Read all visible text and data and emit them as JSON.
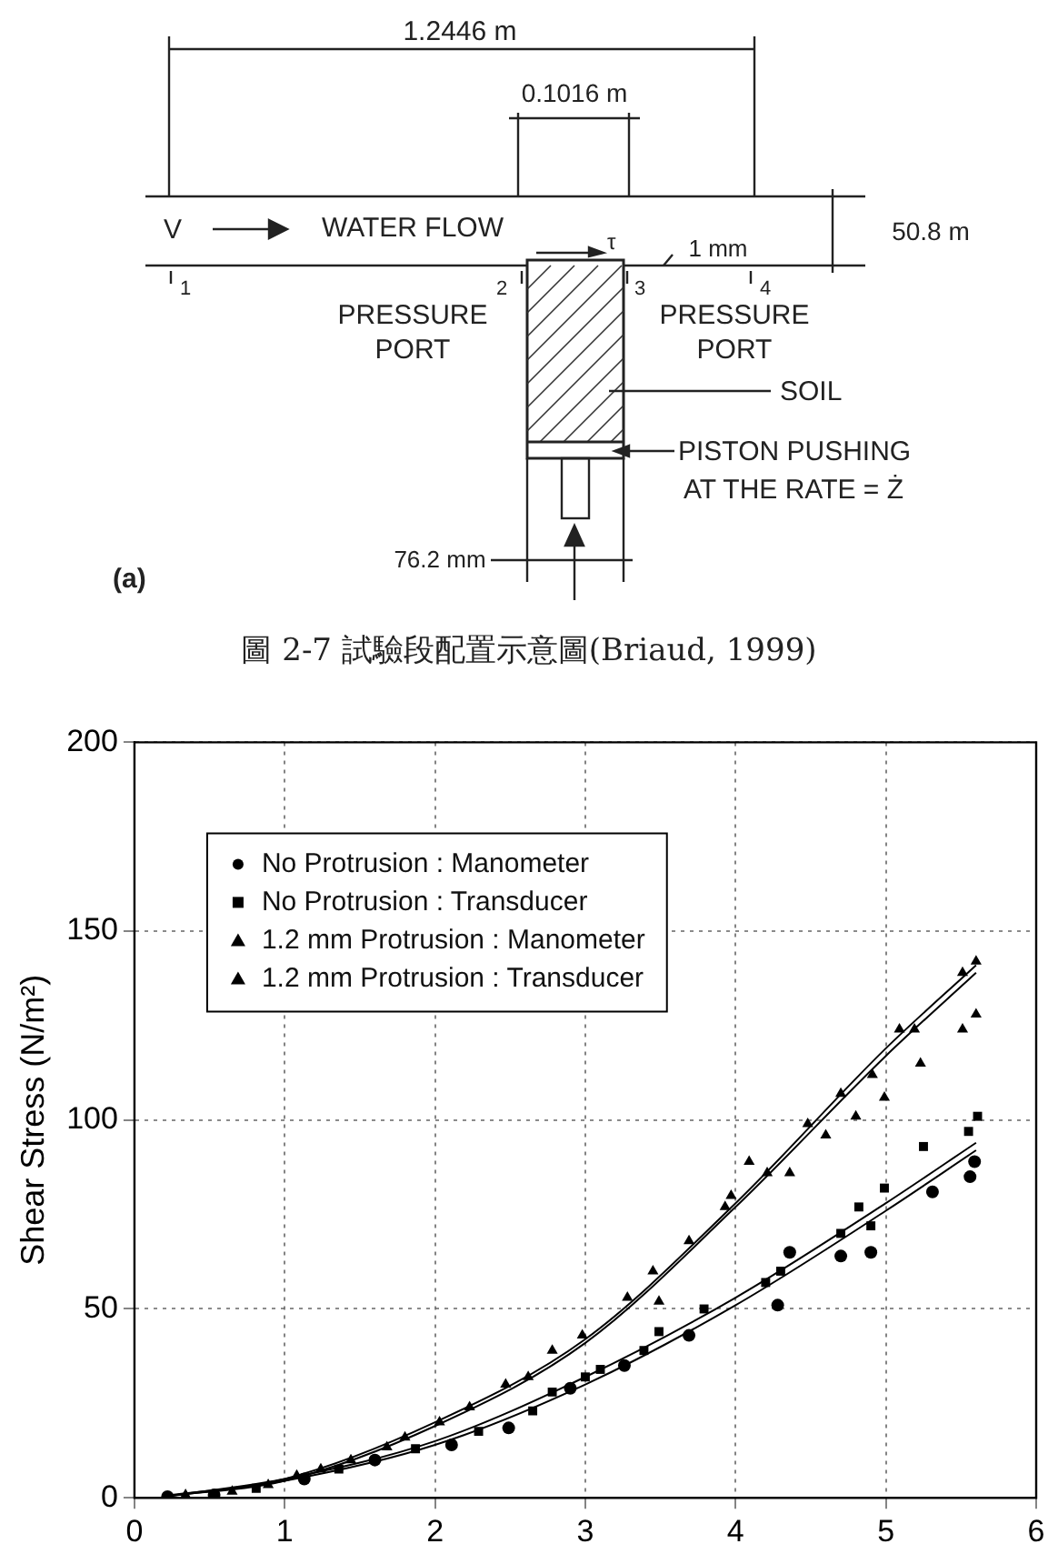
{
  "chart_data": {
    "type": "scatter",
    "ylabel": "Shear Stress (N/m²)",
    "xlim": [
      0,
      6
    ],
    "xticks": [
      0,
      1,
      2,
      3,
      4,
      5,
      6
    ],
    "ylim": [
      0,
      200
    ],
    "yticks": [
      0,
      50,
      100,
      150,
      200
    ],
    "grid": true,
    "legend": "top left",
    "annotations": [
      "1.2446 m",
      "0.1016 m",
      "V",
      "WATER FLOW",
      "τ",
      "1 mm",
      "50.8 m",
      "1",
      "2",
      "3",
      "4",
      "PRESSURE",
      "PORT",
      "PRESSURE",
      "PORT",
      "SOIL",
      "PISTON PUSHING",
      "AT THE RATE = Ż",
      "76.2 mm",
      "(a)",
      "圖 2-7 試驗段配置示意圖(Briaud, 1999)"
    ],
    "series": [
      {
        "name": "No Protrusion : Manometer",
        "color": "#000000",
        "marker": "circle",
        "x": [
          0.22,
          0.53,
          1.13,
          1.6,
          2.11,
          2.49,
          2.9,
          3.26,
          3.69,
          4.28,
          4.36,
          4.7,
          4.9,
          5.31,
          5.56,
          5.59
        ],
        "values": [
          0.3,
          0.8,
          5,
          10,
          14,
          18.5,
          29,
          35,
          43,
          51,
          65,
          64,
          65,
          81,
          85,
          89
        ]
      },
      {
        "name": "No Protrusion : Transducer",
        "color": "#000000",
        "marker": "square",
        "x": [
          0.81,
          1.36,
          1.87,
          2.29,
          2.65,
          2.78,
          3.0,
          3.1,
          3.39,
          3.49,
          3.79,
          4.2,
          4.3,
          4.7,
          4.82,
          4.9,
          4.99,
          5.25,
          5.55,
          5.61
        ],
        "values": [
          2.5,
          7.6,
          13,
          17.6,
          23,
          28,
          32,
          34,
          39,
          44,
          50,
          57,
          60,
          70,
          77,
          72,
          82,
          93,
          97,
          101
        ]
      },
      {
        "name": "1.2 mm Protrusion : Manometer",
        "color": "#000000",
        "marker": "triangle",
        "x": [
          0.34,
          0.89,
          1.24,
          1.68,
          2.03,
          2.47,
          2.78,
          3.28,
          3.49,
          3.97,
          4.36,
          4.6,
          4.8,
          4.99,
          5.23,
          5.51,
          5.6
        ],
        "values": [
          0.8,
          3.4,
          7.6,
          13.4,
          20,
          30,
          39,
          53,
          52,
          80,
          86,
          96,
          101,
          106,
          115,
          124,
          128
        ]
      },
      {
        "name": "1.2 mm Protrusion : Transducer",
        "color": "#000000",
        "marker": "triangle",
        "x": [
          0.65,
          1.08,
          1.44,
          1.8,
          2.23,
          2.62,
          2.98,
          3.45,
          3.69,
          3.93,
          4.09,
          4.21,
          4.48,
          4.7,
          4.91,
          5.09,
          5.19,
          5.51,
          5.6
        ],
        "values": [
          1.7,
          5.9,
          10,
          16,
          24,
          32,
          43,
          60,
          68,
          77,
          89,
          86,
          99,
          107,
          112,
          124,
          124,
          139,
          142
        ]
      },
      {
        "type": "line",
        "color": "#000000",
        "marker": "none",
        "x": [
          0.2,
          1,
          2,
          3,
          4,
          5,
          5.6
        ],
        "values": [
          0.5,
          5,
          20,
          42,
          78,
          119,
          141
        ]
      },
      {
        "type": "line",
        "color": "#000000",
        "marker": "none",
        "x": [
          0.2,
          1,
          2,
          3,
          4,
          5,
          5.6
        ],
        "values": [
          0.4,
          4.5,
          19,
          41,
          77,
          117,
          139
        ]
      },
      {
        "type": "line",
        "color": "#000000",
        "marker": "none",
        "x": [
          0.2,
          1,
          2,
          3,
          4,
          5,
          5.6
        ],
        "values": [
          0.3,
          5,
          15,
          32,
          53,
          78,
          94
        ]
      },
      {
        "type": "line",
        "color": "#000000",
        "marker": "none",
        "x": [
          0.2,
          1,
          2,
          3,
          4,
          5,
          5.6
        ],
        "values": [
          0.3,
          4.5,
          14,
          30,
          51,
          76,
          92
        ]
      }
    ]
  }
}
